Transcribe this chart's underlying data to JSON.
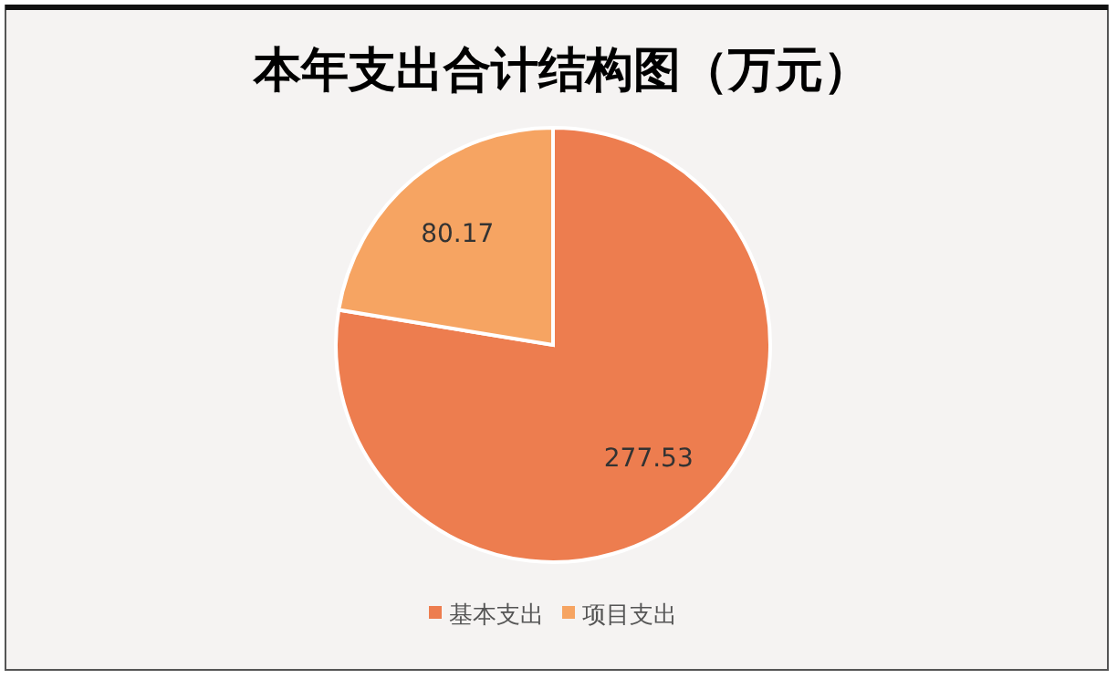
{
  "chart_data": {
    "type": "pie",
    "title": "本年支出合计结构图（万元）",
    "categories": [
      "基本支出",
      "项目支出"
    ],
    "values": [
      277.53,
      80.17
    ],
    "colors": [
      "#ed7d4f",
      "#f6a462"
    ],
    "data_labels": true,
    "legend": "bottom"
  }
}
